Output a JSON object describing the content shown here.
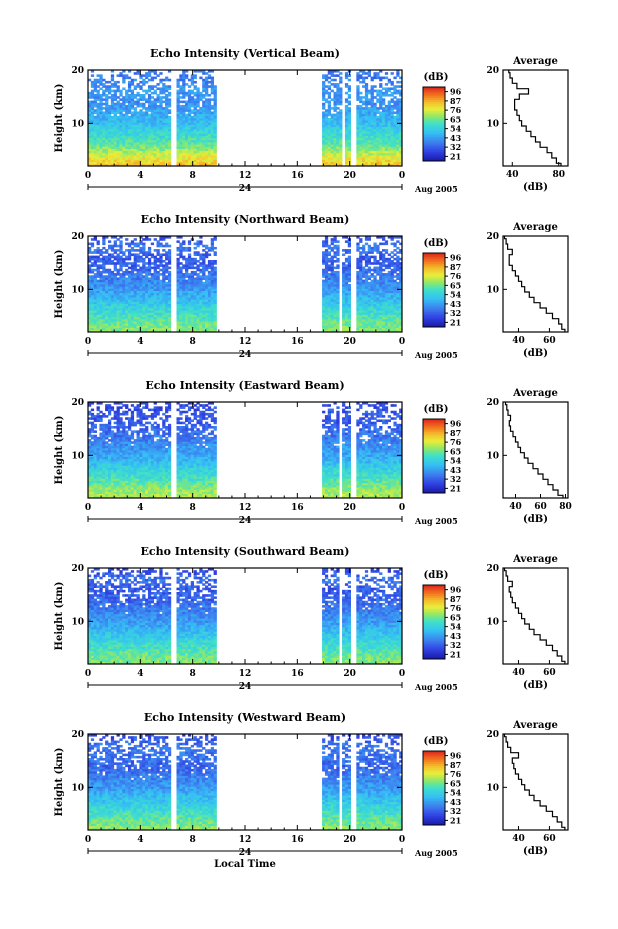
{
  "figure": {
    "common": {
      "ylabel": "Height (km)",
      "xticks": [
        "0",
        "4",
        "8",
        "12",
        "16",
        "20",
        "0"
      ],
      "yticks": [
        "10",
        "20"
      ],
      "day_label": "24",
      "date_label": "Aug 2005",
      "xlabel": "Local Time",
      "colorbar_unit": "(dB)",
      "colorbar_ticks": [
        "96",
        "87",
        "76",
        "65",
        "54",
        "43",
        "32",
        "21"
      ],
      "avg_title": "Average",
      "avg_xlabel": "(dB)"
    }
  },
  "chart_data": [
    {
      "type": "heatmap",
      "title": "Echo Intensity (Vertical Beam)",
      "ylabel": "Height (km)",
      "xlabel": "",
      "xlim": [
        0,
        24
      ],
      "ylim": [
        2,
        20
      ],
      "colorbar": {
        "label": "(dB)",
        "ticks": [
          96,
          87,
          76,
          65,
          54,
          43,
          32,
          21
        ]
      },
      "data_gaps_hours": [
        [
          6.4,
          6.8
        ],
        [
          9.8,
          17.8
        ],
        [
          19.4,
          19.6
        ],
        [
          20.0,
          20.4
        ]
      ],
      "profile_by_height": {
        "height_km": [
          2,
          4,
          6,
          8,
          10,
          12,
          14,
          16,
          18,
          20
        ],
        "db": [
          80,
          72,
          62,
          56,
          50,
          46,
          42,
          44,
          40,
          38
        ]
      },
      "average": {
        "title": "Average",
        "xlabel": "(dB)",
        "xticks": [
          40,
          80
        ],
        "xlim": [
          32,
          88
        ],
        "yticks": [
          10,
          20
        ],
        "height_km": [
          2,
          3,
          4,
          5,
          6,
          7,
          8,
          9,
          10,
          11,
          12,
          13,
          14,
          15,
          16,
          17,
          18,
          19,
          20
        ],
        "db": [
          82,
          78,
          74,
          70,
          64,
          60,
          56,
          52,
          48,
          46,
          44,
          42,
          42,
          46,
          54,
          44,
          40,
          38,
          37
        ]
      }
    },
    {
      "type": "heatmap",
      "title": "Echo Intensity (Northward Beam)",
      "ylabel": "Height (km)",
      "xlabel": "",
      "xlim": [
        0,
        24
      ],
      "ylim": [
        2,
        20
      ],
      "colorbar": {
        "label": "(dB)",
        "ticks": [
          96,
          87,
          76,
          65,
          54,
          43,
          32,
          21
        ]
      },
      "data_gaps_hours": [
        [
          6.4,
          6.8
        ],
        [
          9.8,
          17.8
        ],
        [
          19.2,
          19.5
        ],
        [
          20.0,
          20.4
        ]
      ],
      "profile_by_height": {
        "height_km": [
          2,
          4,
          6,
          8,
          10,
          12,
          14,
          16,
          18,
          20
        ],
        "db": [
          66,
          62,
          56,
          50,
          44,
          40,
          36,
          34,
          40,
          30
        ]
      },
      "average": {
        "title": "Average",
        "xlabel": "(dB)",
        "xticks": [
          40,
          60
        ],
        "xlim": [
          30,
          72
        ],
        "yticks": [
          10,
          20
        ],
        "height_km": [
          2,
          3,
          4,
          5,
          6,
          7,
          8,
          9,
          10,
          11,
          12,
          13,
          14,
          15,
          16,
          17,
          18,
          19,
          20
        ],
        "db": [
          70,
          68,
          66,
          62,
          58,
          54,
          50,
          47,
          44,
          42,
          40,
          38,
          36,
          34,
          34,
          36,
          33,
          32,
          31
        ]
      }
    },
    {
      "type": "heatmap",
      "title": "Echo Intensity (Eastward Beam)",
      "ylabel": "Height (km)",
      "xlabel": "",
      "xlim": [
        0,
        24
      ],
      "ylim": [
        2,
        20
      ],
      "colorbar": {
        "label": "(dB)",
        "ticks": [
          96,
          87,
          76,
          65,
          54,
          43,
          32,
          21
        ]
      },
      "data_gaps_hours": [
        [
          6.4,
          6.8
        ],
        [
          9.8,
          17.8
        ],
        [
          19.2,
          19.5
        ],
        [
          20.0,
          20.4
        ]
      ],
      "profile_by_height": {
        "height_km": [
          2,
          4,
          6,
          8,
          10,
          12,
          14,
          16,
          18,
          20
        ],
        "db": [
          70,
          65,
          58,
          52,
          46,
          42,
          38,
          34,
          34,
          30
        ]
      },
      "average": {
        "title": "Average",
        "xlabel": "(dB)",
        "xticks": [
          40,
          60,
          80
        ],
        "xlim": [
          30,
          82
        ],
        "yticks": [
          10,
          20
        ],
        "height_km": [
          2,
          3,
          4,
          5,
          6,
          7,
          8,
          9,
          10,
          11,
          12,
          13,
          14,
          15,
          16,
          17,
          18,
          19,
          20
        ],
        "db": [
          78,
          74,
          70,
          66,
          62,
          58,
          54,
          50,
          47,
          44,
          42,
          40,
          38,
          36,
          35,
          36,
          34,
          33,
          32
        ]
      }
    },
    {
      "type": "heatmap",
      "title": "Echo Intensity (Southward Beam)",
      "ylabel": "Height (km)",
      "xlabel": "",
      "xlim": [
        0,
        24
      ],
      "ylim": [
        2,
        20
      ],
      "colorbar": {
        "label": "(dB)",
        "ticks": [
          96,
          87,
          76,
          65,
          54,
          43,
          32,
          21
        ]
      },
      "data_gaps_hours": [
        [
          6.4,
          6.8
        ],
        [
          9.8,
          17.8
        ],
        [
          19.2,
          19.5
        ],
        [
          20.0,
          20.4
        ]
      ],
      "profile_by_height": {
        "height_km": [
          2,
          4,
          6,
          8,
          10,
          12,
          14,
          16,
          18,
          20
        ],
        "db": [
          66,
          62,
          56,
          50,
          44,
          40,
          36,
          34,
          38,
          30
        ]
      },
      "average": {
        "title": "Average",
        "xlabel": "(dB)",
        "xticks": [
          40,
          60
        ],
        "xlim": [
          30,
          72
        ],
        "yticks": [
          10,
          20
        ],
        "height_km": [
          2,
          3,
          4,
          5,
          6,
          7,
          8,
          9,
          10,
          11,
          12,
          13,
          14,
          15,
          16,
          17,
          18,
          19,
          20
        ],
        "db": [
          70,
          68,
          65,
          62,
          58,
          54,
          50,
          47,
          44,
          42,
          40,
          38,
          36,
          35,
          34,
          36,
          33,
          32,
          31
        ]
      }
    },
    {
      "type": "heatmap",
      "title": "Echo Intensity (Westward Beam)",
      "ylabel": "Height (km)",
      "xlabel": "Local Time",
      "xlim": [
        0,
        24
      ],
      "ylim": [
        2,
        20
      ],
      "colorbar": {
        "label": "(dB)",
        "ticks": [
          96,
          87,
          76,
          65,
          54,
          43,
          32,
          21
        ]
      },
      "data_gaps_hours": [
        [
          6.4,
          6.8
        ],
        [
          9.8,
          17.8
        ],
        [
          19.2,
          19.5
        ],
        [
          20.0,
          20.4
        ]
      ],
      "profile_by_height": {
        "height_km": [
          2,
          4,
          6,
          8,
          10,
          12,
          14,
          16,
          18,
          20
        ],
        "db": [
          66,
          62,
          56,
          50,
          44,
          40,
          36,
          38,
          38,
          30
        ]
      },
      "average": {
        "title": "Average",
        "xlabel": "(dB)",
        "xticks": [
          40,
          60
        ],
        "xlim": [
          30,
          72
        ],
        "yticks": [
          10,
          20
        ],
        "height_km": [
          2,
          3,
          4,
          5,
          6,
          7,
          8,
          9,
          10,
          11,
          12,
          13,
          14,
          15,
          16,
          17,
          18,
          19,
          20
        ],
        "db": [
          70,
          68,
          65,
          62,
          58,
          54,
          50,
          47,
          44,
          42,
          40,
          38,
          37,
          36,
          40,
          35,
          33,
          32,
          31
        ]
      }
    }
  ]
}
